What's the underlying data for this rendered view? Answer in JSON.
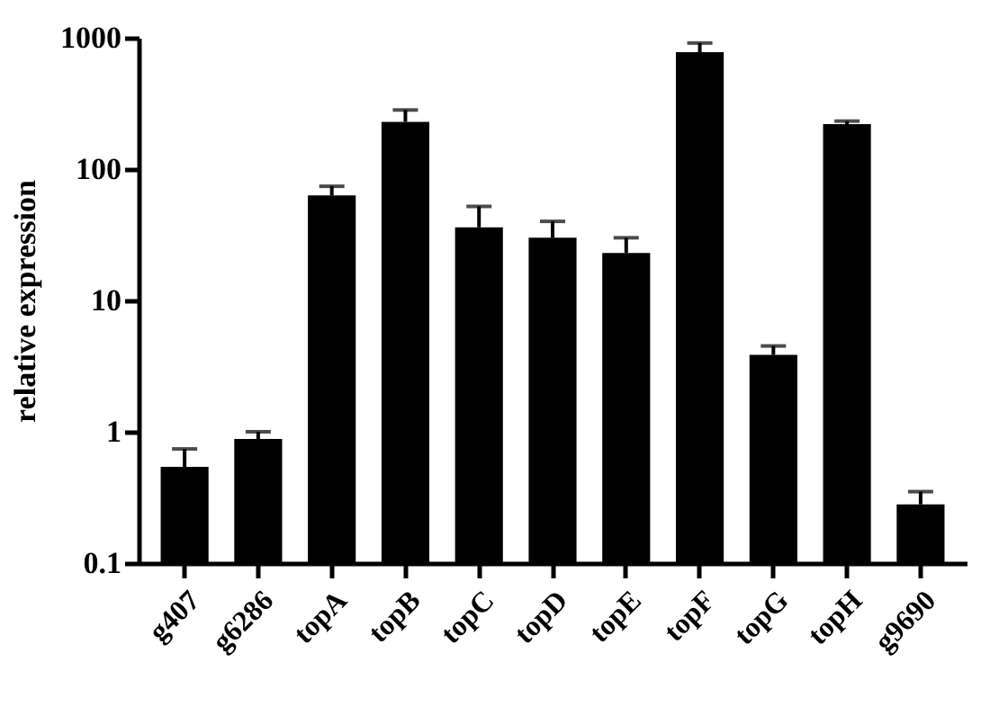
{
  "chart_data": {
    "type": "bar",
    "ylabel": "relative expression",
    "categories": [
      "g407",
      "g6286",
      "topA",
      "topB",
      "topC",
      "topD",
      "topE",
      "topF",
      "topG",
      "topH",
      "g9690"
    ],
    "values": [
      0.54,
      0.88,
      63,
      229,
      36,
      30,
      23,
      777,
      3.85,
      220,
      0.28
    ],
    "errors": [
      [
        0.54,
        0.74
      ],
      [
        0.88,
        1.0
      ],
      [
        63,
        74
      ],
      [
        229,
        282
      ],
      [
        36,
        52
      ],
      [
        30,
        40
      ],
      [
        23,
        30
      ],
      [
        777,
        912
      ],
      [
        3.85,
        4.5
      ],
      [
        220,
        232
      ],
      [
        0.28,
        0.35
      ]
    ],
    "color": "#000000",
    "log": true,
    "ylim": [
      0.1,
      1000
    ],
    "yticks": [
      0.1,
      1,
      10,
      100,
      1000
    ],
    "grid": false
  }
}
